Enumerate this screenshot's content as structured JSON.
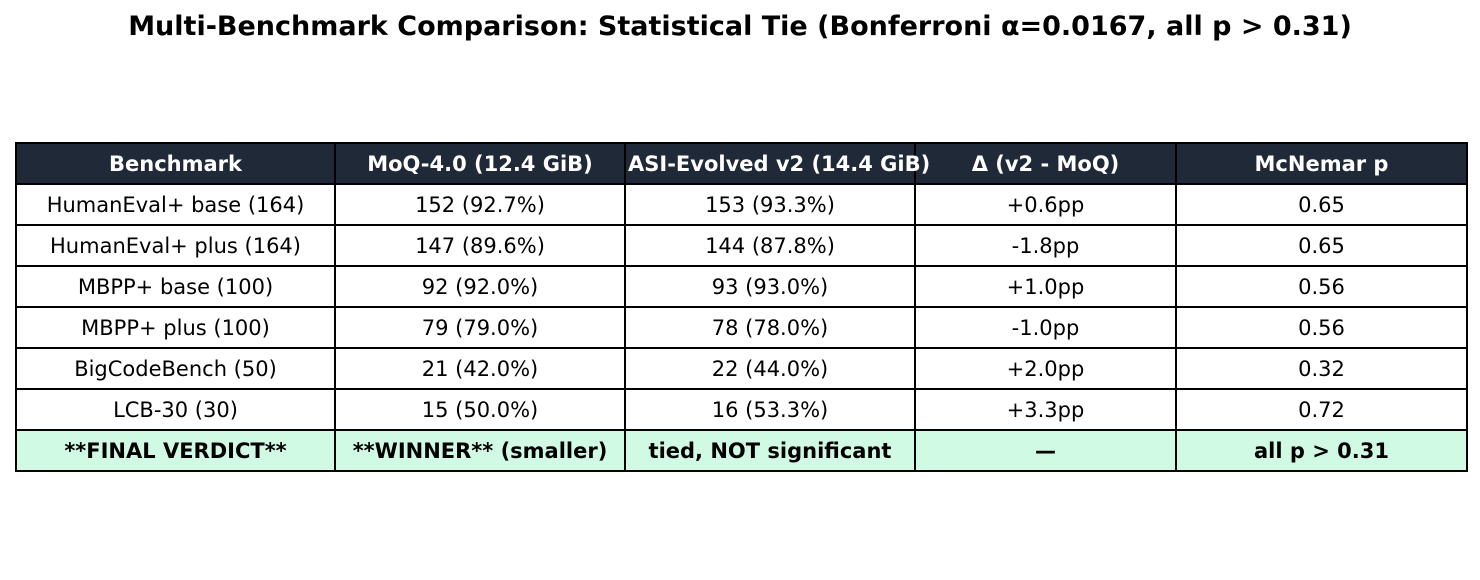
{
  "chart_data": {
    "type": "table",
    "title": "Multi-Benchmark Comparison: Statistical Tie (Bonferroni α=0.0167, all p > 0.31)",
    "columns": [
      "Benchmark",
      "MoQ-4.0 (12.4 GiB)",
      "ASI-Evolved v2 (14.4 GiB)",
      "Δ (v2 - MoQ)",
      "McNemar p"
    ],
    "rows": [
      [
        "HumanEval+ base (164)",
        "152 (92.7%)",
        "153 (93.3%)",
        "+0.6pp",
        "0.65"
      ],
      [
        "HumanEval+ plus (164)",
        "147 (89.6%)",
        "144 (87.8%)",
        "-1.8pp",
        "0.65"
      ],
      [
        "MBPP+ base (100)",
        "92 (92.0%)",
        "93 (93.0%)",
        "+1.0pp",
        "0.56"
      ],
      [
        "MBPP+ plus (100)",
        "79 (79.0%)",
        "78 (78.0%)",
        "-1.0pp",
        "0.56"
      ],
      [
        "BigCodeBench (50)",
        "21 (42.0%)",
        "22 (44.0%)",
        "+2.0pp",
        "0.32"
      ],
      [
        "LCB-30 (30)",
        "15 (50.0%)",
        "16 (53.3%)",
        "+3.3pp",
        "0.72"
      ]
    ],
    "footer_row": [
      "**FINAL VERDICT**",
      "**WINNER** (smaller)",
      "tied, NOT significant",
      "—",
      "all p > 0.31"
    ]
  },
  "colors": {
    "header_background": "#1f2937",
    "header_text": "#ffffff",
    "body_background": "#ffffff",
    "footer_background": "#d1fae5",
    "border": "#000000"
  }
}
